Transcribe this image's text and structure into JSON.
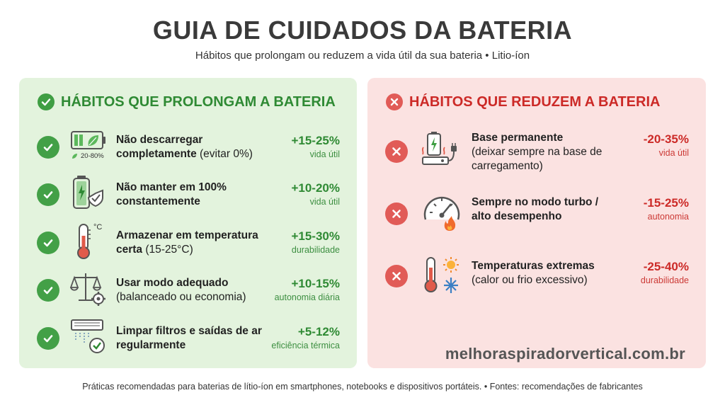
{
  "title": "GUIA DE CUIDADOS DA BATERIA",
  "subtitle": "Hábitos que prolongam ou reduzem a vida útil da sua bateria • Litio-íon",
  "colors": {
    "good_accent": "#2f8a34",
    "good_bg": "#e3f3dd",
    "bad_accent": "#cc2a27",
    "bad_bg": "#fbe2e1"
  },
  "good": {
    "heading": "HÁBITOS QUE PROLONGAM A BATERIA",
    "items": [
      {
        "bold": "Não descarregar completamente",
        "rest": " (evitar 0%)",
        "value": "+15-25%",
        "unit": "vida útil",
        "icon": "battery-leaf-icon",
        "icon_label": "20-80%"
      },
      {
        "bold": "Não manter em 100% constantemente",
        "rest": "",
        "value": "+10-20%",
        "unit": "vida útil",
        "icon": "battery-shield-icon"
      },
      {
        "bold": "Armazenar em temperatura certa",
        "rest": " (15-25°C)",
        "value": "+15-30%",
        "unit": "durabilidade",
        "icon": "thermometer-icon",
        "icon_label": "°C"
      },
      {
        "bold": "Usar modo adequado",
        "rest": " (balanceado ou economia)",
        "value": "+10-15%",
        "unit": "autonomia diária",
        "icon": "balance-scale-gear-icon"
      },
      {
        "bold": "Limpar filtros e saídas de ar regularmente",
        "rest": "",
        "value": "+5-12%",
        "unit": "eficiência térmica",
        "icon": "air-vent-check-icon"
      }
    ]
  },
  "bad": {
    "heading": "HÁBITOS QUE REDUZEM A BATERIA",
    "items": [
      {
        "bold": "Base permanente",
        "rest": "(deixar sempre na base de carregamento)",
        "value": "-20-35%",
        "unit": "vida útil",
        "icon": "charging-dock-icon"
      },
      {
        "bold": "Sempre no modo turbo / alto desempenho",
        "rest": "",
        "value": "-15-25%",
        "unit": "autonomia",
        "icon": "speedometer-flame-icon"
      },
      {
        "bold": "Temperaturas extremas",
        "rest": "(calor ou frio excessivo)",
        "value": "-25-40%",
        "unit": "durabilidade",
        "icon": "thermometer-sun-snow-icon"
      }
    ]
  },
  "website": "melhoraspiradorvertical.com.br",
  "footer": "Práticas recomendadas para baterias de lítio-íon em smartphones, notebooks e dispositivos portáteis. • Fontes: recomendações de fabricantes"
}
